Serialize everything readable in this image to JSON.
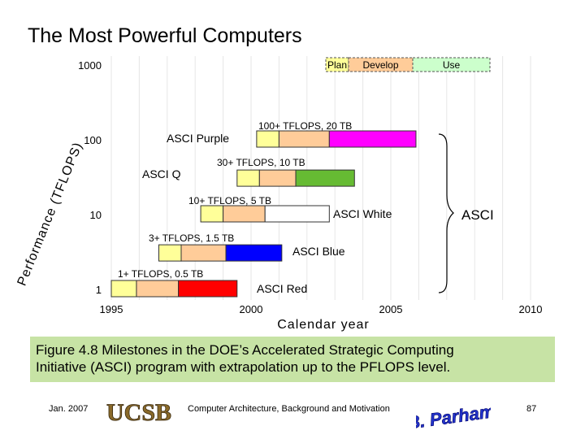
{
  "slide": {
    "title": "The Most Powerful Computers",
    "caption_line1": "Figure 4.8     Milestones in the DOE’s Accelerated Strategic Computing",
    "caption_line2": "Initiative (ASCI) program with extrapolation up to the PFLOPS level.",
    "footer_date": "Jan. 2007",
    "footer_course": "Computer Architecture, Background and Motivation",
    "footer_page": "87",
    "logo_text": "UCSB",
    "author_signature": "B. Parhami"
  },
  "chart_data": {
    "type": "bar",
    "subtype": "horizontal-milestone-timeline",
    "xlabel": "Calendar year",
    "ylabel": "Performance (TFLOPS)",
    "xlim": [
      1995,
      2010
    ],
    "ylim": [
      1,
      1000
    ],
    "y_scale": "log",
    "x_ticks": [
      1995,
      2000,
      2005,
      2010
    ],
    "y_ticks": [
      1,
      10,
      100,
      1000
    ],
    "y_tick_labels": [
      "1",
      "10",
      "100",
      "1000"
    ],
    "grid": "vertical-light",
    "phases": [
      {
        "name": "Plan",
        "color": "#ffff99"
      },
      {
        "name": "Develop",
        "color": "#ffcc99"
      },
      {
        "name": "Use",
        "color": "#ccffcc"
      }
    ],
    "legend": {
      "position": "top-right",
      "style": "dashed"
    },
    "series": [
      {
        "name": "ASCI Red",
        "spec": "1+ TFLOPS, 0.5 TB",
        "perf": 1,
        "plan": [
          1995.0,
          1995.9
        ],
        "develop": [
          1995.9,
          1997.4
        ],
        "use": [
          1997.4,
          1999.5
        ],
        "use_color": "#ff0000"
      },
      {
        "name": "ASCI Blue",
        "spec": "3+ TFLOPS, 1.5 TB",
        "perf": 3,
        "plan": [
          1996.7,
          1997.5
        ],
        "develop": [
          1997.5,
          1999.1
        ],
        "use": [
          1999.1,
          2001.1
        ],
        "use_color": "#0000ff"
      },
      {
        "name": "ASCI White",
        "spec": "10+ TFLOPS, 5 TB",
        "perf": 10,
        "plan": [
          1998.2,
          1999.0
        ],
        "develop": [
          1999.0,
          2000.5
        ],
        "use": [
          2000.5,
          2002.8
        ],
        "use_color": "#ffffff"
      },
      {
        "name": "ASCI Q",
        "spec": "30+ TFLOPS, 10 TB",
        "perf": 30,
        "plan": [
          1999.5,
          2000.3
        ],
        "develop": [
          2000.3,
          2001.6
        ],
        "use": [
          2001.6,
          2003.7
        ],
        "use_color": "#66bb33"
      },
      {
        "name": "ASCI Purple",
        "spec": "100+ TFLOPS, 20 TB",
        "perf": 100,
        "plan": [
          2000.2,
          2001.0
        ],
        "develop": [
          2001.0,
          2002.8
        ],
        "use": [
          2002.8,
          2005.9
        ],
        "use_color": "#ff00ff"
      }
    ],
    "bracket_label": "ASCI"
  }
}
